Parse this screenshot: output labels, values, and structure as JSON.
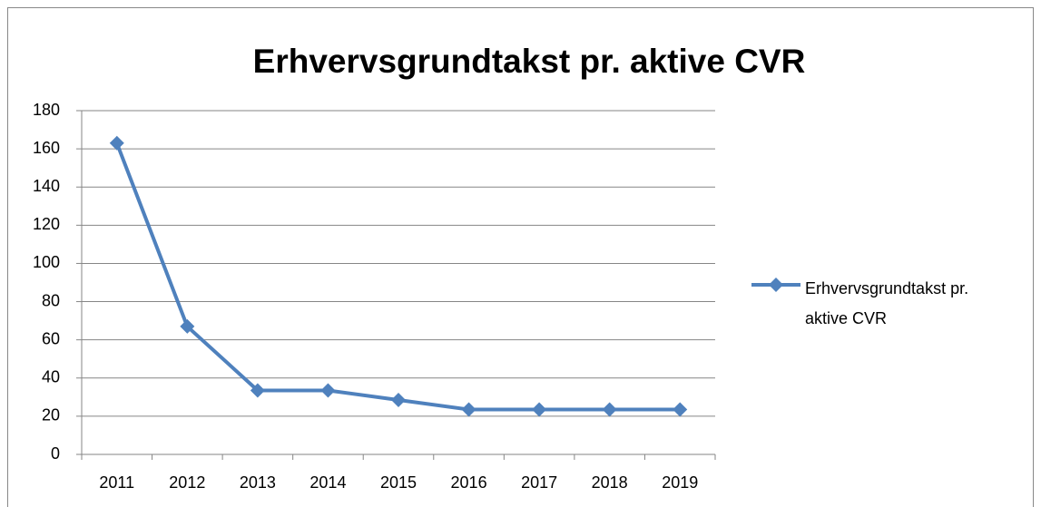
{
  "chart_data": {
    "type": "line",
    "title": "Erhvervsgrundtakst pr. aktive CVR",
    "categories": [
      "2011",
      "2012",
      "2013",
      "2014",
      "2015",
      "2016",
      "2017",
      "2018",
      "2019"
    ],
    "series": [
      {
        "name": "Erhvervsgrundtakst pr. aktive CVR",
        "color": "#4f81bd",
        "values": [
          163,
          67,
          33.5,
          33.5,
          28.5,
          23.5,
          23.5,
          23.5,
          23.5
        ]
      }
    ],
    "ylim": [
      0,
      180
    ],
    "yticks": [
      0,
      20,
      40,
      60,
      80,
      100,
      120,
      140,
      160,
      180
    ],
    "grid": true,
    "legend": "right"
  }
}
